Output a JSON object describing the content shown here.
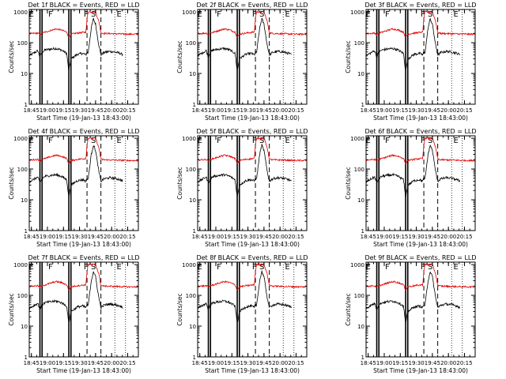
{
  "figure": {
    "panels": [
      {
        "title": "Det 1f BLACK = Events, RED = LLD"
      },
      {
        "title": "Det 2f BLACK = Events, RED = LLD"
      },
      {
        "title": "Det 3f BLACK = Events, RED = LLD"
      },
      {
        "title": "Det 4f BLACK = Events, RED = LLD"
      },
      {
        "title": "Det 5f BLACK = Events, RED = LLD"
      },
      {
        "title": "Det 6f BLACK = Events, RED = LLD"
      },
      {
        "title": "Det 7f BLACK = Events, RED = LLD"
      },
      {
        "title": "Det 8f BLACK = Events, RED = LLD"
      },
      {
        "title": "Det 9f BLACK = Events, RED = LLD"
      }
    ]
  },
  "chart_data": {
    "type": "line",
    "title": "",
    "xlabel": "Start Time (19-Jan-13 18:43:00)",
    "ylabel": "Counts/sec",
    "x_unit": "minutes after 18:43",
    "xlim": [
      0,
      102
    ],
    "ylim": [
      1,
      1200
    ],
    "y_scale": "log",
    "x_tick_labels": [
      "18:45",
      "19:00",
      "19:15",
      "19:30",
      "19:45",
      "20:00",
      "20:15"
    ],
    "y_tick_labels": [
      "1",
      "10",
      "100",
      "1000"
    ],
    "y_tick_values": [
      1,
      10,
      100,
      1000
    ],
    "grid": false,
    "region_labels": [
      {
        "text": "E",
        "x": 2
      },
      {
        "text": "F",
        "x": 20
      },
      {
        "text": "F",
        "x": 53
      },
      {
        "text": "S",
        "x": 60
      },
      {
        "text": "E",
        "x": 84
      }
    ],
    "solid_markers_x": [
      10,
      12,
      37,
      39
    ],
    "dashed_markers_x": [
      54,
      67
    ],
    "dotted_markers_x": [
      80,
      90
    ],
    "series": [
      {
        "name": "Events",
        "color": "#000000",
        "role": "events",
        "profile_x": [
          0,
          8,
          10,
          12,
          15,
          20,
          25,
          30,
          35,
          37,
          39,
          45,
          50,
          53,
          54,
          55,
          58,
          60,
          62,
          65,
          67,
          70,
          75,
          80,
          85,
          88
        ],
        "profile_y": [
          38,
          55,
          35,
          50,
          58,
          62,
          65,
          58,
          45,
          12,
          30,
          42,
          45,
          40,
          50,
          45,
          300,
          600,
          400,
          85,
          40,
          48,
          52,
          50,
          45,
          40
        ],
        "range_x": [
          0,
          88
        ]
      },
      {
        "name": "LLD",
        "color": "#e00000",
        "role": "lld",
        "profile_x": [
          0,
          8,
          10,
          12,
          15,
          20,
          25,
          30,
          35,
          37,
          39,
          45,
          50,
          53,
          54,
          55,
          58,
          60,
          62,
          65,
          67,
          70,
          80,
          90,
          102
        ],
        "profile_y": [
          195,
          205,
          185,
          205,
          220,
          250,
          280,
          260,
          220,
          150,
          190,
          205,
          215,
          220,
          600,
          1000,
          1000,
          1000,
          1000,
          500,
          210,
          200,
          195,
          190,
          188
        ],
        "range_x": [
          0,
          102
        ]
      }
    ]
  }
}
